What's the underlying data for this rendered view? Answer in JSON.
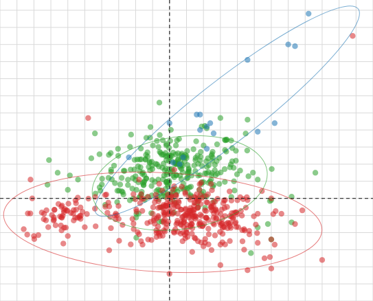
{
  "chart_data": {
    "type": "scatter",
    "xlim": [
      -5,
      6
    ],
    "ylim": [
      -3,
      5.8
    ],
    "grid": true,
    "origin_lines": "dashed",
    "colors": {
      "green": "#2ca02c",
      "red": "#d62728",
      "blue": "#1f77b4",
      "grid": "#d9d9d9",
      "axis": "#222222"
    },
    "series": [
      {
        "color_key": "blue",
        "points": [
          [
            4.1,
            5.4
          ],
          [
            3.5,
            4.5
          ],
          [
            3.7,
            4.45
          ],
          [
            2.3,
            4.05
          ],
          [
            0.8,
            2.45
          ],
          [
            0.9,
            2.45
          ],
          [
            1.1,
            2.1
          ],
          [
            1.2,
            2.2
          ],
          [
            0.9,
            2.0
          ],
          [
            0.0,
            2.2
          ],
          [
            3.1,
            2.2
          ],
          [
            2.6,
            1.95
          ],
          [
            -1.2,
            1.2
          ],
          [
            0.4,
            1.2
          ],
          [
            0.3,
            1.0
          ],
          [
            0.1,
            1.05
          ],
          [
            1.3,
            1.9
          ],
          [
            1.1,
            1.45
          ]
        ],
        "ellipse": {
          "center": [
            1.7,
            2.55
          ],
          "rx": 4.9,
          "ry": 0.9,
          "angle_deg": 38
        }
      },
      {
        "color_key": "green",
        "points": [
          [
            -0.3,
            2.8
          ],
          [
            -2.2,
            1.9
          ],
          [
            -0.2,
            1.7
          ],
          [
            0.2,
            1.0
          ],
          [
            1.5,
            2.35
          ],
          [
            2.3,
            2.3
          ],
          [
            4.3,
            0.75
          ],
          [
            3.6,
            0.05
          ],
          [
            2.6,
            0.55
          ],
          [
            1.9,
            0.5
          ],
          [
            -3.6,
            0.4
          ],
          [
            -3.3,
            0.75
          ],
          [
            -3.0,
            0.25
          ],
          [
            -2.7,
            0.55
          ],
          [
            2.6,
            -0.85
          ],
          [
            3.0,
            -1.2
          ],
          [
            3.6,
            -0.7
          ],
          [
            2.4,
            -1.6
          ],
          [
            3.0,
            -0.05
          ],
          [
            2.9,
            -0.75
          ],
          [
            1.0,
            0.05
          ],
          [
            -1.8,
            0.6
          ]
        ],
        "generated": {
          "count": 300,
          "center": [
            0.1,
            0.78
          ],
          "spread": [
            1.05,
            0.55
          ],
          "correlation": 0.15
        },
        "ellipse": {
          "center": [
            0.3,
            0.45
          ],
          "rx": 2.6,
          "ry": 1.35,
          "angle_deg": 8
        }
      },
      {
        "color_key": "red",
        "points": [
          [
            5.4,
            4.75
          ],
          [
            -2.4,
            2.35
          ],
          [
            -4.1,
            0.55
          ],
          [
            -4.05,
            0.0
          ],
          [
            -4.3,
            -0.9
          ],
          [
            -4.0,
            -1.1
          ],
          [
            -3.0,
            -1.1
          ],
          [
            4.5,
            -1.8
          ],
          [
            3.0,
            -1.2
          ],
          [
            2.8,
            -1.75
          ],
          [
            3.0,
            -2.05
          ],
          [
            2.3,
            -2.1
          ],
          [
            1.5,
            -1.95
          ],
          [
            2.2,
            -1.5
          ],
          [
            1.0,
            -1.4
          ],
          [
            -0.1,
            -0.85
          ],
          [
            0.4,
            -1.0
          ],
          [
            2.6,
            -0.45
          ],
          [
            2.35,
            -0.95
          ],
          [
            3.3,
            -0.45
          ],
          [
            3.0,
            0.0
          ],
          [
            2.3,
            -0.05
          ],
          [
            3.7,
            -0.75
          ],
          [
            -2.2,
            -0.3
          ],
          [
            -1.5,
            -0.6
          ],
          [
            -1.9,
            0.1
          ],
          [
            -0.9,
            0.55
          ],
          [
            2.2,
            -0.9
          ],
          [
            2.6,
            -1.3
          ]
        ],
        "generated": {
          "count": 300,
          "center": [
            0.6,
            -0.55
          ],
          "spread": [
            1.05,
            0.42
          ],
          "correlation": -0.1
        },
        "generated_cluster": {
          "count": 60,
          "center": [
            -3.0,
            -0.45
          ],
          "spread": [
            0.7,
            0.35
          ],
          "correlation": 0.55
        },
        "ellipse": {
          "center": [
            -0.2,
            -0.7
          ],
          "rx": 4.7,
          "ry": 1.45,
          "angle_deg": -3
        }
      }
    ]
  }
}
